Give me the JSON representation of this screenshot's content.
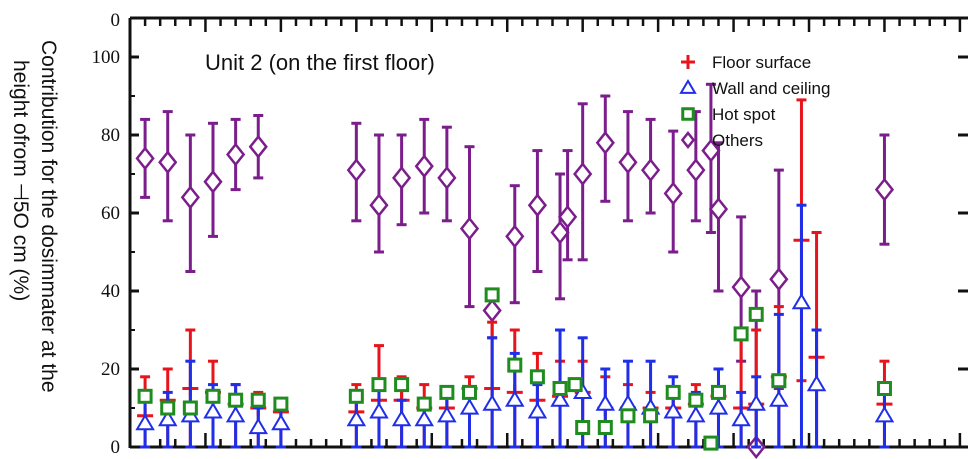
{
  "chart_data": {
    "type": "scatter",
    "title": "Unit 2 (on the first floor)",
    "ylabel_lines": [
      "Contribution for the dosimmater at the",
      "height ofrom ⊣5O cm (%)"
    ],
    "yticks": [
      "0",
      "20",
      "40",
      "60",
      "80",
      "100"
    ],
    "top_tick_label": "0",
    "ylim": [
      0,
      110
    ],
    "xlim": [
      0,
      56
    ],
    "legend_position": "top-right",
    "colors": {
      "floor": "#e8141c",
      "wall": "#1f2ee8",
      "hot": "#1e8c1e",
      "others": "#7b1e8c"
    },
    "series": [
      {
        "name": "Floor surface",
        "marker": "plus",
        "points": [
          {
            "x": 1,
            "y": 8,
            "lo": 0,
            "hi": 18
          },
          {
            "x": 2.5,
            "y": 12,
            "lo": 0,
            "hi": 20
          },
          {
            "x": 4,
            "y": 15,
            "lo": 0,
            "hi": 30
          },
          {
            "x": 5.5,
            "y": 14,
            "lo": 0,
            "hi": 22
          },
          {
            "x": 7,
            "y": 11,
            "lo": 0,
            "hi": 16
          },
          {
            "x": 8.5,
            "y": 10,
            "lo": 0,
            "hi": 14
          },
          {
            "x": 10,
            "y": 9,
            "lo": 0,
            "hi": 12
          },
          {
            "x": 15,
            "y": 9,
            "lo": 0,
            "hi": 16
          },
          {
            "x": 16.5,
            "y": 12,
            "lo": 0,
            "hi": 26
          },
          {
            "x": 18,
            "y": 12,
            "lo": 0,
            "hi": 18
          },
          {
            "x": 19.5,
            "y": 10,
            "lo": 0,
            "hi": 16
          },
          {
            "x": 21,
            "y": 10,
            "lo": 0,
            "hi": 14
          },
          {
            "x": 22.5,
            "y": 15,
            "lo": 0,
            "hi": 18
          },
          {
            "x": 24,
            "y": 15,
            "lo": 0,
            "hi": 32
          },
          {
            "x": 25.5,
            "y": 14,
            "lo": 0,
            "hi": 30
          },
          {
            "x": 27,
            "y": 12,
            "lo": 0,
            "hi": 24
          },
          {
            "x": 28.5,
            "y": 13,
            "lo": 0,
            "hi": 22
          },
          {
            "x": 30,
            "y": 14,
            "lo": 0,
            "hi": 22
          },
          {
            "x": 31.5,
            "y": 10,
            "lo": 0,
            "hi": 18
          },
          {
            "x": 33,
            "y": 10,
            "lo": 0,
            "hi": 16
          },
          {
            "x": 34.5,
            "y": 10,
            "lo": 0,
            "hi": 14
          },
          {
            "x": 36,
            "y": 10,
            "lo": 0,
            "hi": 14
          },
          {
            "x": 37.5,
            "y": 11,
            "lo": 0,
            "hi": 16
          },
          {
            "x": 39,
            "y": 13,
            "lo": 0,
            "hi": 20
          },
          {
            "x": 40.5,
            "y": 10,
            "lo": 0,
            "hi": 28
          },
          {
            "x": 41.5,
            "y": 11,
            "lo": 0,
            "hi": 30
          },
          {
            "x": 43,
            "y": 18,
            "lo": 0,
            "hi": 36
          },
          {
            "x": 44.5,
            "y": 53,
            "lo": 17,
            "hi": 89
          },
          {
            "x": 45.5,
            "y": 23,
            "lo": 0,
            "hi": 55
          },
          {
            "x": 50,
            "y": 11,
            "lo": 0,
            "hi": 22
          }
        ]
      },
      {
        "name": "Wall and ceiling",
        "marker": "triangle",
        "points": [
          {
            "x": 1,
            "y": 6,
            "lo": 0,
            "hi": 12
          },
          {
            "x": 2.5,
            "y": 7,
            "lo": 0,
            "hi": 14
          },
          {
            "x": 4,
            "y": 8,
            "lo": 0,
            "hi": 22
          },
          {
            "x": 5.5,
            "y": 9,
            "lo": 0,
            "hi": 16
          },
          {
            "x": 7,
            "y": 8,
            "lo": 0,
            "hi": 16
          },
          {
            "x": 8.5,
            "y": 5,
            "lo": 0,
            "hi": 10
          },
          {
            "x": 10,
            "y": 6,
            "lo": 0,
            "hi": 12
          },
          {
            "x": 15,
            "y": 7,
            "lo": 0,
            "hi": 14
          },
          {
            "x": 16.5,
            "y": 9,
            "lo": 0,
            "hi": 16
          },
          {
            "x": 18,
            "y": 7,
            "lo": 0,
            "hi": 12
          },
          {
            "x": 19.5,
            "y": 7,
            "lo": 0,
            "hi": 12
          },
          {
            "x": 21,
            "y": 8,
            "lo": 0,
            "hi": 14
          },
          {
            "x": 22.5,
            "y": 10,
            "lo": 0,
            "hi": 14
          },
          {
            "x": 24,
            "y": 11,
            "lo": 0,
            "hi": 28
          },
          {
            "x": 25.5,
            "y": 12,
            "lo": 0,
            "hi": 24
          },
          {
            "x": 27,
            "y": 9,
            "lo": 0,
            "hi": 16
          },
          {
            "x": 28.5,
            "y": 12,
            "lo": 0,
            "hi": 30
          },
          {
            "x": 30,
            "y": 14,
            "lo": 0,
            "hi": 28
          },
          {
            "x": 31.5,
            "y": 11,
            "lo": 0,
            "hi": 20
          },
          {
            "x": 33,
            "y": 11,
            "lo": 0,
            "hi": 22
          },
          {
            "x": 34.5,
            "y": 10,
            "lo": 0,
            "hi": 22
          },
          {
            "x": 36,
            "y": 9,
            "lo": 0,
            "hi": 18
          },
          {
            "x": 37.5,
            "y": 8,
            "lo": 0,
            "hi": 14
          },
          {
            "x": 39,
            "y": 10,
            "lo": 0,
            "hi": 20
          },
          {
            "x": 40.5,
            "y": 7,
            "lo": 0,
            "hi": 14
          },
          {
            "x": 41.5,
            "y": 11,
            "lo": 0,
            "hi": 18
          },
          {
            "x": 43,
            "y": 12,
            "lo": 0,
            "hi": 34
          },
          {
            "x": 44.5,
            "y": 37,
            "lo": 0,
            "hi": 62
          },
          {
            "x": 45.5,
            "y": 16,
            "lo": 0,
            "hi": 30
          },
          {
            "x": 50,
            "y": 8,
            "lo": 0,
            "hi": 14
          }
        ]
      },
      {
        "name": "Hot spot",
        "marker": "square",
        "points": [
          {
            "x": 1,
            "y": 13
          },
          {
            "x": 2.5,
            "y": 10
          },
          {
            "x": 4,
            "y": 10
          },
          {
            "x": 5.5,
            "y": 13
          },
          {
            "x": 7,
            "y": 12
          },
          {
            "x": 8.5,
            "y": 12
          },
          {
            "x": 10,
            "y": 11
          },
          {
            "x": 15,
            "y": 13
          },
          {
            "x": 16.5,
            "y": 16
          },
          {
            "x": 18,
            "y": 16
          },
          {
            "x": 19.5,
            "y": 11
          },
          {
            "x": 21,
            "y": 14
          },
          {
            "x": 22.5,
            "y": 14
          },
          {
            "x": 24,
            "y": 39
          },
          {
            "x": 25.5,
            "y": 21
          },
          {
            "x": 27,
            "y": 18
          },
          {
            "x": 28.5,
            "y": 15
          },
          {
            "x": 29.5,
            "y": 16
          },
          {
            "x": 30,
            "y": 5
          },
          {
            "x": 31.5,
            "y": 5
          },
          {
            "x": 33,
            "y": 8
          },
          {
            "x": 34.5,
            "y": 8
          },
          {
            "x": 36,
            "y": 14
          },
          {
            "x": 37.5,
            "y": 12
          },
          {
            "x": 38.5,
            "y": 1
          },
          {
            "x": 39,
            "y": 14
          },
          {
            "x": 40.5,
            "y": 29
          },
          {
            "x": 41.5,
            "y": 34
          },
          {
            "x": 43,
            "y": 17
          },
          {
            "x": 50,
            "y": 15
          }
        ]
      },
      {
        "name": "Others",
        "marker": "diamond",
        "points": [
          {
            "x": 1,
            "y": 74,
            "lo": 64,
            "hi": 84
          },
          {
            "x": 2.5,
            "y": 73,
            "lo": 58,
            "hi": 86
          },
          {
            "x": 4,
            "y": 64,
            "lo": 45,
            "hi": 80
          },
          {
            "x": 5.5,
            "y": 68,
            "lo": 54,
            "hi": 83
          },
          {
            "x": 7,
            "y": 75,
            "lo": 66,
            "hi": 84
          },
          {
            "x": 8.5,
            "y": 77,
            "lo": 69,
            "hi": 85
          },
          {
            "x": 15,
            "y": 71,
            "lo": 58,
            "hi": 83
          },
          {
            "x": 16.5,
            "y": 62,
            "lo": 50,
            "hi": 80
          },
          {
            "x": 18,
            "y": 69,
            "lo": 57,
            "hi": 80
          },
          {
            "x": 19.5,
            "y": 72,
            "lo": 60,
            "hi": 84
          },
          {
            "x": 21,
            "y": 69,
            "lo": 58,
            "hi": 82
          },
          {
            "x": 22.5,
            "y": 56,
            "lo": 36,
            "hi": 77
          },
          {
            "x": 24,
            "y": 35,
            "lo": 28,
            "hi": 40
          },
          {
            "x": 25.5,
            "y": 54,
            "lo": 37,
            "hi": 67
          },
          {
            "x": 27,
            "y": 62,
            "lo": 45,
            "hi": 76
          },
          {
            "x": 28.5,
            "y": 55,
            "lo": 38,
            "hi": 70
          },
          {
            "x": 29,
            "y": 59,
            "lo": 48,
            "hi": 76
          },
          {
            "x": 30,
            "y": 70,
            "lo": 48,
            "hi": 88
          },
          {
            "x": 31.5,
            "y": 78,
            "lo": 63,
            "hi": 90
          },
          {
            "x": 33,
            "y": 73,
            "lo": 58,
            "hi": 86
          },
          {
            "x": 34.5,
            "y": 71,
            "lo": 60,
            "hi": 84
          },
          {
            "x": 36,
            "y": 65,
            "lo": 50,
            "hi": 81
          },
          {
            "x": 37.5,
            "y": 71,
            "lo": 58,
            "hi": 86
          },
          {
            "x": 38.5,
            "y": 76,
            "lo": 55,
            "hi": 93
          },
          {
            "x": 39,
            "y": 61,
            "lo": 40,
            "hi": 78
          },
          {
            "x": 40.5,
            "y": 41,
            "lo": 22,
            "hi": 59
          },
          {
            "x": 41.5,
            "y": 0,
            "lo": 0,
            "hi": 40
          },
          {
            "x": 43,
            "y": 43,
            "lo": 15,
            "hi": 71
          },
          {
            "x": 50,
            "y": 66,
            "lo": 52,
            "hi": 80
          }
        ]
      }
    ]
  }
}
